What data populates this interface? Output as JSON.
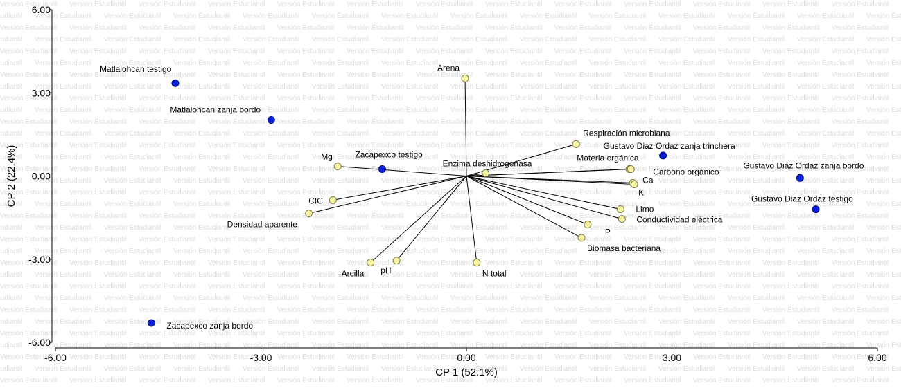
{
  "watermark": "Versión Estudiantil",
  "chart_data": {
    "type": "scatter",
    "subtype": "biplot",
    "xlabel": "CP 1 (52.1%)",
    "ylabel": "CP 2 (22.4%)",
    "xlim": [
      -6,
      6
    ],
    "ylim": [
      -6,
      6
    ],
    "xticks": [
      "-6.00",
      "-3.00",
      "0.00",
      "3.00",
      "6.00"
    ],
    "yticks": [
      "-6.00",
      "-3.00",
      "0.00",
      "3.00",
      "6.00"
    ],
    "grid": false,
    "legend": "none",
    "colors": {
      "observations": "#0a1fd6",
      "variables": "#f7f3a3",
      "variable_edge": "#7a7a45",
      "vector_line": "#000000"
    },
    "observations": [
      {
        "label": "Matlalohcan testigo",
        "x": -4.25,
        "y": 3.35
      },
      {
        "label": "Matlalohcan zanja bordo",
        "x": -2.85,
        "y": 2.02
      },
      {
        "label": "Zacapexco testigo",
        "x": -1.23,
        "y": 0.25
      },
      {
        "label": "Zacapexco zanja bordo",
        "x": -4.6,
        "y": -5.3
      },
      {
        "label": "Gustavo Diaz Ordaz zanja trinchera",
        "x": 2.87,
        "y": 0.74
      },
      {
        "label": "Gustavo Diaz Ordaz zanja bordo",
        "x": 4.87,
        "y": -0.07
      },
      {
        "label": "Gustavo Diaz Ordaz testigo",
        "x": 5.1,
        "y": -1.2
      }
    ],
    "variables": [
      {
        "label": "Arena",
        "x": -0.02,
        "y": 3.52
      },
      {
        "label": "Respiración microbiana",
        "x": 1.6,
        "y": 1.15
      },
      {
        "label": "Enzima deshidrogenasa",
        "x": 0.28,
        "y": 0.1
      },
      {
        "label": "Materia orgánica",
        "x": 2.38,
        "y": 0.25
      },
      {
        "label": "Carbono orgánico",
        "x": 2.4,
        "y": 0.25
      },
      {
        "label": "Ca",
        "x": 2.43,
        "y": -0.25
      },
      {
        "label": "K",
        "x": 2.45,
        "y": -0.3
      },
      {
        "label": "Limo",
        "x": 2.25,
        "y": -1.2
      },
      {
        "label": "Conductividad eléctrica",
        "x": 2.27,
        "y": -1.55
      },
      {
        "label": "P",
        "x": 1.77,
        "y": -1.75
      },
      {
        "label": "Biomasa bacteriana",
        "x": 1.68,
        "y": -2.23
      },
      {
        "label": "N total",
        "x": 0.15,
        "y": -3.12
      },
      {
        "label": "pH",
        "x": -1.02,
        "y": -3.05
      },
      {
        "label": "Arcilla",
        "x": -1.4,
        "y": -3.12
      },
      {
        "label": "Mg",
        "x": -1.88,
        "y": 0.35
      },
      {
        "label": "CIC",
        "x": -1.95,
        "y": -0.87
      },
      {
        "label": "Densidad aparente",
        "x": -2.3,
        "y": -1.35
      }
    ]
  }
}
